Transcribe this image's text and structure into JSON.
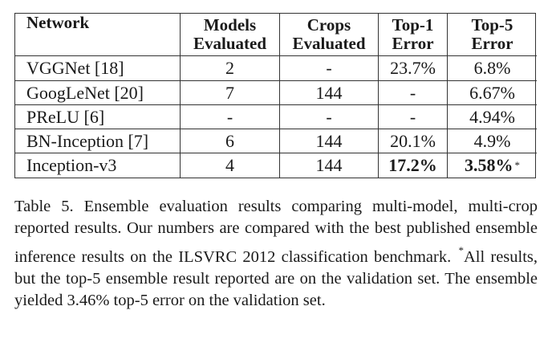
{
  "table": {
    "headers": [
      {
        "lines": [
          "Network"
        ]
      },
      {
        "lines": [
          "Models",
          "Evaluated"
        ]
      },
      {
        "lines": [
          "Crops",
          "Evaluated"
        ]
      },
      {
        "lines": [
          "Top-1",
          "Error"
        ]
      },
      {
        "lines": [
          "Top-5",
          "Error"
        ]
      }
    ],
    "rows": [
      {
        "network": "VGGNet [18]",
        "models": "2",
        "crops": "-",
        "top1": "23.7%",
        "top5": "6.8%"
      },
      {
        "network": "GoogLeNet [20]",
        "models": "7",
        "crops": "144",
        "top1": "-",
        "top5": "6.67%"
      },
      {
        "network": "PReLU [6]",
        "models": "-",
        "crops": "-",
        "top1": "-",
        "top5": "4.94%"
      },
      {
        "network": "BN-Inception [7]",
        "models": "6",
        "crops": "144",
        "top1": "20.1%",
        "top5": "4.9%"
      },
      {
        "network": "Inception-v3",
        "models": "4",
        "crops": "144",
        "top1": "17.2%",
        "top5": "3.58%",
        "top5_mark": "*"
      }
    ]
  },
  "caption": {
    "label": "Table 5.",
    "text_a": "Ensemble evaluation results comparing multi-model, multi-crop reported results. Our numbers are compared with the best published ensemble inference results on the ILSVRC 2012 classification benchmark.",
    "mark": "*",
    "text_b": "All results, but the top-5 ensemble result reported are on the validation set. The ensemble yielded 3.46% top-5 error on the validation set."
  }
}
